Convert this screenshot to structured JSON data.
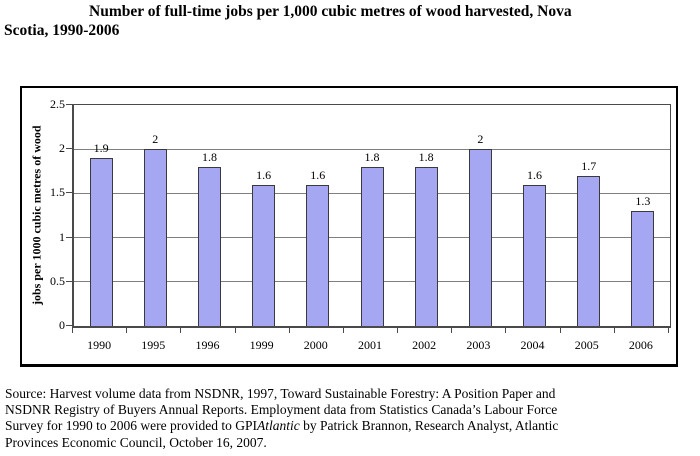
{
  "header": {
    "line1": "Number of full-time jobs per 1,000 cubic metres of wood harvested, Nova",
    "line2": "Scotia, 1990-2006"
  },
  "chart_data": {
    "type": "bar",
    "title": "Number of full-time jobs per 1,000 cubic metres of wood harvested, Nova Scotia, 1990-2006",
    "categories": [
      "1990",
      "1995",
      "1996",
      "1999",
      "2000",
      "2001",
      "2002",
      "2003",
      "2004",
      "2005",
      "2006"
    ],
    "values": [
      1.9,
      2,
      1.8,
      1.6,
      1.6,
      1.8,
      1.8,
      2,
      1.6,
      1.7,
      1.3
    ],
    "bar_labels": [
      "1.9",
      "2",
      "1.8",
      "1.6",
      "1.6",
      "1.8",
      "1.8",
      "2",
      "1.6",
      "1.7",
      "1.3"
    ],
    "xlabel": "",
    "ylabel": "jobs per 1000 cubic metres of wood",
    "ylim": [
      0,
      2.5
    ],
    "yticks": [
      0,
      0.5,
      1,
      1.5,
      2,
      2.5
    ],
    "ytick_labels": [
      "0",
      "0.5",
      "1",
      "1.5",
      "2",
      "2.5"
    ],
    "grid": true,
    "legend": "none",
    "bar_color": "#a5a7f2",
    "bar_border_color": "#3a3a3a",
    "gridline_color": "#7f7f7f"
  },
  "source": {
    "line1": "Source: Harvest volume data from NSDNR, 1997, Toward Sustainable Forestry: A Position Paper and",
    "line2": "NSDNR Registry of Buyers Annual Reports. Employment data from Statistics Canada’s Labour Force",
    "line3_pre": "Survey for 1990 to 2006 were provided to GPI",
    "line3_italic": "Atlantic",
    "line3_post": " by Patrick Brannon, Research Analyst, Atlantic",
    "line4": "Provinces Economic Council, October 16, 2007."
  }
}
